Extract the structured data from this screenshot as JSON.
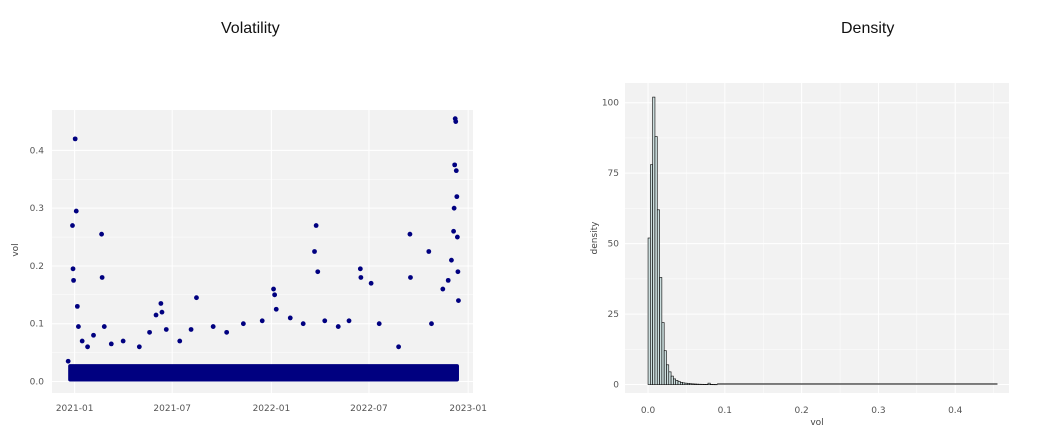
{
  "chart_data": [
    {
      "type": "scatter",
      "title": "Volatility",
      "xlabel": "",
      "ylabel": "vol",
      "x_range": [
        "2020-11-20",
        "2023-01-10"
      ],
      "ylim": [
        -0.02,
        0.47
      ],
      "x_ticks": [
        "2021-01",
        "2021-07",
        "2022-01",
        "2022-07",
        "2023-01"
      ],
      "y_ticks": [
        "0.0",
        "0.1",
        "0.2",
        "0.3",
        "0.4"
      ],
      "point_color": "#000080",
      "panel_color": "#f2f2f2",
      "grid": true,
      "baseline_band": {
        "x_from": "2020-12-20",
        "x_to": "2022-12-15",
        "y_from": 0.0,
        "y_to": 0.03
      },
      "points": [
        {
          "x": "2020-12-20",
          "y": 0.035
        },
        {
          "x": "2020-12-28",
          "y": 0.27
        },
        {
          "x": "2020-12-29",
          "y": 0.195
        },
        {
          "x": "2020-12-30",
          "y": 0.175
        },
        {
          "x": "2021-01-02",
          "y": 0.42
        },
        {
          "x": "2021-01-04",
          "y": 0.295
        },
        {
          "x": "2021-01-06",
          "y": 0.13
        },
        {
          "x": "2021-01-08",
          "y": 0.095
        },
        {
          "x": "2021-01-15",
          "y": 0.07
        },
        {
          "x": "2021-01-25",
          "y": 0.06
        },
        {
          "x": "2021-02-05",
          "y": 0.08
        },
        {
          "x": "2021-02-20",
          "y": 0.255
        },
        {
          "x": "2021-02-21",
          "y": 0.18
        },
        {
          "x": "2021-02-25",
          "y": 0.095
        },
        {
          "x": "2021-03-10",
          "y": 0.065
        },
        {
          "x": "2021-04-01",
          "y": 0.07
        },
        {
          "x": "2021-05-01",
          "y": 0.06
        },
        {
          "x": "2021-05-20",
          "y": 0.085
        },
        {
          "x": "2021-06-01",
          "y": 0.115
        },
        {
          "x": "2021-06-10",
          "y": 0.135
        },
        {
          "x": "2021-06-12",
          "y": 0.12
        },
        {
          "x": "2021-06-20",
          "y": 0.09
        },
        {
          "x": "2021-07-15",
          "y": 0.07
        },
        {
          "x": "2021-08-05",
          "y": 0.09
        },
        {
          "x": "2021-08-15",
          "y": 0.145
        },
        {
          "x": "2021-09-15",
          "y": 0.095
        },
        {
          "x": "2021-10-10",
          "y": 0.085
        },
        {
          "x": "2021-11-10",
          "y": 0.1
        },
        {
          "x": "2021-12-15",
          "y": 0.105
        },
        {
          "x": "2022-01-05",
          "y": 0.16
        },
        {
          "x": "2022-01-07",
          "y": 0.15
        },
        {
          "x": "2022-01-10",
          "y": 0.125
        },
        {
          "x": "2022-02-05",
          "y": 0.11
        },
        {
          "x": "2022-03-01",
          "y": 0.1
        },
        {
          "x": "2022-03-25",
          "y": 0.27
        },
        {
          "x": "2022-03-22",
          "y": 0.225
        },
        {
          "x": "2022-03-28",
          "y": 0.19
        },
        {
          "x": "2022-04-10",
          "y": 0.105
        },
        {
          "x": "2022-05-05",
          "y": 0.095
        },
        {
          "x": "2022-05-25",
          "y": 0.105
        },
        {
          "x": "2022-06-15",
          "y": 0.195
        },
        {
          "x": "2022-06-16",
          "y": 0.18
        },
        {
          "x": "2022-07-05",
          "y": 0.17
        },
        {
          "x": "2022-07-20",
          "y": 0.1
        },
        {
          "x": "2022-08-25",
          "y": 0.06
        },
        {
          "x": "2022-09-15",
          "y": 0.255
        },
        {
          "x": "2022-09-16",
          "y": 0.18
        },
        {
          "x": "2022-10-20",
          "y": 0.225
        },
        {
          "x": "2022-10-25",
          "y": 0.1
        },
        {
          "x": "2022-11-15",
          "y": 0.16
        },
        {
          "x": "2022-11-25",
          "y": 0.175
        },
        {
          "x": "2022-12-01",
          "y": 0.21
        },
        {
          "x": "2022-12-05",
          "y": 0.26
        },
        {
          "x": "2022-12-06",
          "y": 0.3
        },
        {
          "x": "2022-12-07",
          "y": 0.375
        },
        {
          "x": "2022-12-08",
          "y": 0.455
        },
        {
          "x": "2022-12-09",
          "y": 0.45
        },
        {
          "x": "2022-12-10",
          "y": 0.365
        },
        {
          "x": "2022-12-11",
          "y": 0.32
        },
        {
          "x": "2022-12-12",
          "y": 0.25
        },
        {
          "x": "2022-12-13",
          "y": 0.19
        },
        {
          "x": "2022-12-14",
          "y": 0.14
        }
      ]
    },
    {
      "type": "histogram",
      "title": "Density",
      "xlabel": "vol",
      "ylabel": "density",
      "xlim": [
        -0.03,
        0.47
      ],
      "ylim": [
        -3,
        107
      ],
      "x_ticks": [
        "0.0",
        "0.1",
        "0.2",
        "0.3",
        "0.4"
      ],
      "y_ticks": [
        "0",
        "25",
        "50",
        "75",
        "100"
      ],
      "bar_fill": "#ccdede",
      "bar_stroke": "#000000",
      "panel_color": "#f2f2f2",
      "grid": true,
      "bin_width": 0.003,
      "bins_start": 0.0,
      "densities": [
        52,
        78,
        102,
        88,
        62,
        38,
        22,
        12,
        7,
        4.5,
        3,
        2,
        1.5,
        1.1,
        0.8,
        0.6,
        0.5,
        0.4,
        0.3,
        0.25,
        0.2,
        0.15,
        0.12,
        0.1,
        0.08,
        0.06,
        0.5,
        0.05,
        0.04,
        0.03
      ]
    }
  ]
}
